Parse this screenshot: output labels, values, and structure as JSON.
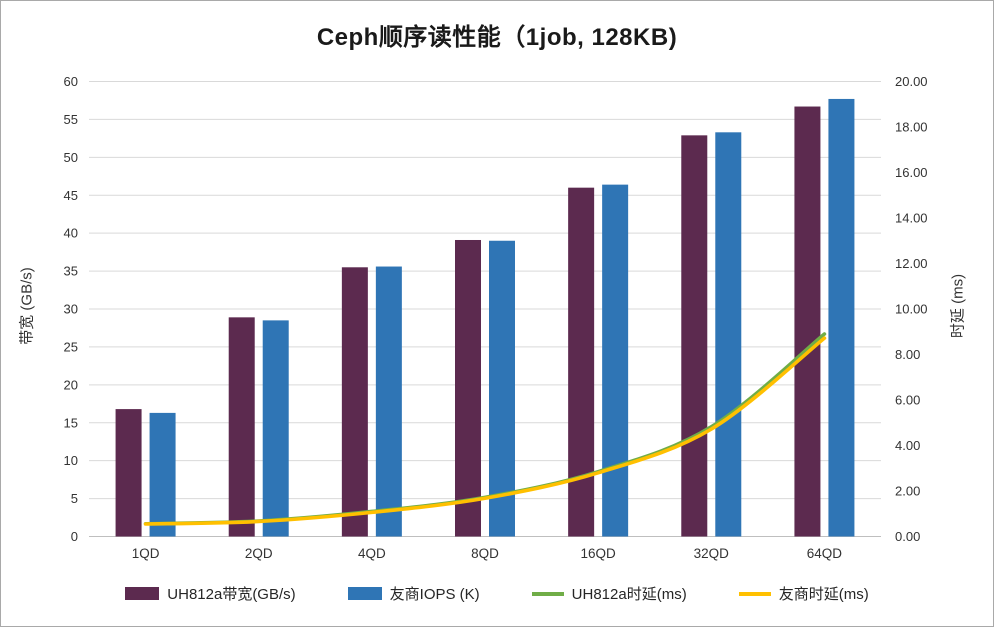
{
  "chart_data": {
    "type": "combo-bar-line",
    "title": "Ceph顺序读性能（1job, 128KB)",
    "categories": [
      "1QD",
      "2QD",
      "4QD",
      "8QD",
      "16QD",
      "32QD",
      "64QD"
    ],
    "series": [
      {
        "name": "UH812a带宽(GB/s)",
        "type": "bar",
        "axis": "left",
        "color": "#5C2A4F",
        "values": [
          16.8,
          28.9,
          35.5,
          39.1,
          46.0,
          52.9,
          56.7
        ]
      },
      {
        "name": "友商IOPS (K)",
        "type": "bar",
        "axis": "left",
        "color": "#2F75B5",
        "values": [
          16.3,
          28.5,
          35.6,
          39.0,
          46.4,
          53.3,
          57.7
        ]
      },
      {
        "name": "UH812a时延(ms)",
        "type": "line",
        "axis": "right",
        "color": "#70AD47",
        "values": [
          0.56,
          0.68,
          1.1,
          1.72,
          2.85,
          4.82,
          8.9
        ]
      },
      {
        "name": "友商时延(ms)",
        "type": "line",
        "axis": "right",
        "color": "#FFC000",
        "values": [
          0.55,
          0.66,
          1.06,
          1.68,
          2.8,
          4.72,
          8.72
        ]
      }
    ],
    "left_axis": {
      "label": "带宽 (GB/s)",
      "min": 0,
      "max": 60,
      "step": 5,
      "decimals": 0
    },
    "right_axis": {
      "label": "时延 (ms)",
      "min": 0,
      "max": 20,
      "step": 2,
      "decimals": 2
    },
    "grid": true,
    "legend_position": "bottom"
  },
  "colors": {
    "gridline": "#D9D9D9",
    "axis_line": "#BFBFBF",
    "tick_text": "#333333",
    "title_text": "#1a1a1a",
    "background": "#FFFFFF"
  }
}
